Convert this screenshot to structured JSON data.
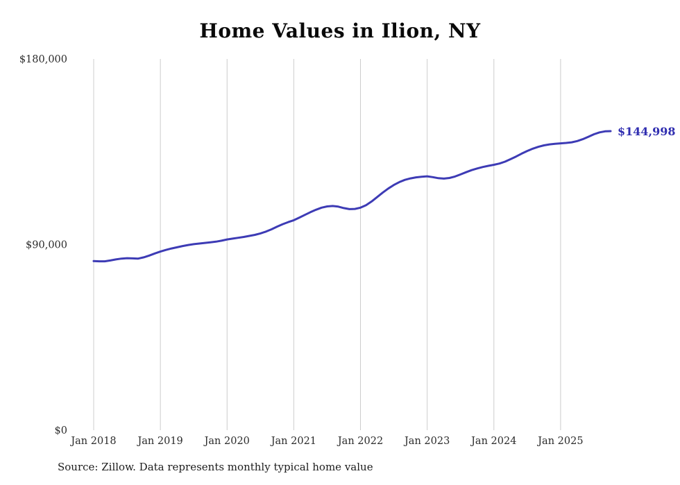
{
  "title": "Home Values in Ilion, NY",
  "source": "Source: Zillow. Data represents monthly typical home value",
  "end_label": "$144,998",
  "colors": {
    "line": "#3d3bb5",
    "end_label": "#2f2db0",
    "grid": "#cccccc",
    "tick_text": "#2b2b2b"
  },
  "chart_data": {
    "type": "line",
    "title": "Home Values in Ilion, NY",
    "xlabel": "",
    "ylabel": "",
    "ylim": [
      0,
      180000
    ],
    "grid": "vertical-only",
    "legend": "none",
    "series_name": "Monthly typical home value",
    "frequency": "monthly",
    "x_start_month": "2018-01",
    "x_end_month": "2025-10",
    "latest_value": 144998,
    "y_ticks": [
      {
        "value": 0,
        "label": "$0"
      },
      {
        "value": 90000,
        "label": "$90,000"
      },
      {
        "value": 180000,
        "label": "$180,000"
      }
    ],
    "x_gridlines": [
      {
        "index": 0,
        "label": "Jan 2018"
      },
      {
        "index": 12,
        "label": "Jan 2019"
      },
      {
        "index": 24,
        "label": "Jan 2020"
      },
      {
        "index": 36,
        "label": "Jan 2021"
      },
      {
        "index": 48,
        "label": "Jan 2022"
      },
      {
        "index": 60,
        "label": "Jan 2023"
      },
      {
        "index": 72,
        "label": "Jan 2024"
      },
      {
        "index": 84,
        "label": "Jan 2025"
      }
    ],
    "values": [
      82000,
      81900,
      81900,
      82300,
      82800,
      83200,
      83400,
      83300,
      83200,
      83800,
      84700,
      85700,
      86600,
      87400,
      88100,
      88700,
      89300,
      89800,
      90200,
      90500,
      90800,
      91100,
      91400,
      91900,
      92500,
      92900,
      93300,
      93700,
      94200,
      94700,
      95400,
      96300,
      97400,
      98700,
      99900,
      100900,
      101800,
      103100,
      104400,
      105700,
      106900,
      107900,
      108500,
      108700,
      108400,
      107700,
      107200,
      107300,
      107900,
      109100,
      110900,
      113000,
      115200,
      117200,
      118900,
      120300,
      121400,
      122100,
      122600,
      122900,
      123100,
      122700,
      122200,
      122000,
      122300,
      123000,
      124000,
      125100,
      126100,
      126900,
      127600,
      128200,
      128700,
      129300,
      130200,
      131400,
      132700,
      134100,
      135400,
      136500,
      137400,
      138100,
      138600,
      138900,
      139100,
      139300,
      139600,
      140200,
      141100,
      142300,
      143500,
      144400,
      144900,
      144998
    ]
  }
}
